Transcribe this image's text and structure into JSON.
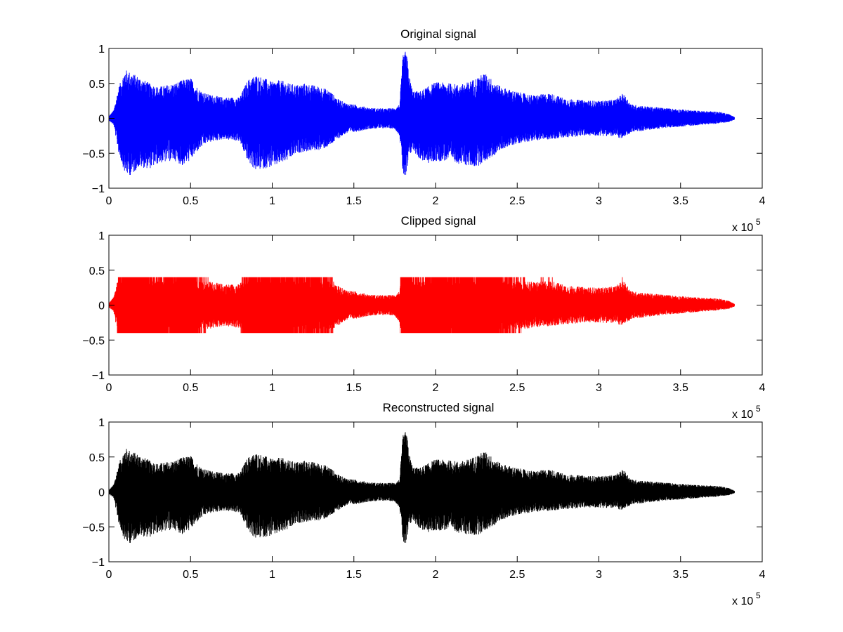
{
  "chart_data": [
    {
      "type": "line",
      "title": "Original signal",
      "color": "#0000ff",
      "xlim": [
        0,
        400000
      ],
      "ylim": [
        -1,
        1
      ],
      "x_ticks": [
        0,
        50000,
        100000,
        150000,
        200000,
        250000,
        300000,
        350000,
        400000
      ],
      "x_tick_labels": [
        "0",
        "0.5",
        "1",
        "1.5",
        "2",
        "2.5",
        "3",
        "3.5",
        "4"
      ],
      "y_ticks": [
        -1,
        -0.5,
        0,
        0.5,
        1
      ],
      "y_tick_labels": [
        "−1",
        "−0.5",
        "0",
        "0.5",
        "1"
      ],
      "x_multiplier": "x 10",
      "x_multiplier_exp": "5",
      "envelope": {
        "x": [
          0,
          3000,
          6000,
          10000,
          14000,
          18000,
          25000,
          30000,
          40000,
          45000,
          50000,
          55000,
          60000,
          70000,
          80000,
          85000,
          90000,
          95000,
          100000,
          105000,
          110000,
          115000,
          120000,
          130000,
          135000,
          140000,
          145000,
          150000,
          160000,
          170000,
          175000,
          178000,
          180000,
          182000,
          184000,
          186000,
          190000,
          195000,
          200000,
          210000,
          215000,
          220000,
          225000,
          230000,
          235000,
          240000,
          250000,
          260000,
          270000,
          280000,
          290000,
          300000,
          310000,
          315000,
          320000,
          330000,
          340000,
          350000,
          360000,
          370000,
          375000,
          380000,
          383000
        ],
        "upper": [
          0.03,
          0.12,
          0.45,
          0.7,
          0.65,
          0.6,
          0.5,
          0.45,
          0.5,
          0.55,
          0.58,
          0.42,
          0.35,
          0.3,
          0.3,
          0.55,
          0.62,
          0.58,
          0.52,
          0.55,
          0.5,
          0.48,
          0.5,
          0.45,
          0.4,
          0.28,
          0.22,
          0.2,
          0.15,
          0.14,
          0.15,
          0.2,
          0.9,
          0.98,
          0.6,
          0.4,
          0.38,
          0.45,
          0.52,
          0.5,
          0.48,
          0.52,
          0.58,
          0.65,
          0.55,
          0.45,
          0.38,
          0.33,
          0.36,
          0.28,
          0.26,
          0.25,
          0.27,
          0.36,
          0.2,
          0.17,
          0.15,
          0.13,
          0.11,
          0.1,
          0.09,
          0.06,
          0.02
        ],
        "lower": [
          -0.03,
          -0.1,
          -0.5,
          -0.8,
          -0.82,
          -0.7,
          -0.72,
          -0.65,
          -0.6,
          -0.68,
          -0.6,
          -0.45,
          -0.35,
          -0.3,
          -0.33,
          -0.62,
          -0.75,
          -0.72,
          -0.7,
          -0.65,
          -0.6,
          -0.5,
          -0.48,
          -0.45,
          -0.4,
          -0.3,
          -0.22,
          -0.2,
          -0.15,
          -0.14,
          -0.15,
          -0.25,
          -0.8,
          -0.9,
          -0.55,
          -0.45,
          -0.58,
          -0.65,
          -0.62,
          -0.6,
          -0.66,
          -0.68,
          -0.7,
          -0.62,
          -0.55,
          -0.45,
          -0.36,
          -0.32,
          -0.3,
          -0.28,
          -0.25,
          -0.25,
          -0.26,
          -0.3,
          -0.2,
          -0.17,
          -0.14,
          -0.12,
          -0.1,
          -0.08,
          -0.07,
          -0.05,
          -0.02
        ]
      }
    },
    {
      "type": "line",
      "title": "Clipped signal",
      "color": "#ff0000",
      "xlim": [
        0,
        400000
      ],
      "ylim": [
        -1,
        1
      ],
      "x_ticks": [
        0,
        50000,
        100000,
        150000,
        200000,
        250000,
        300000,
        350000,
        400000
      ],
      "x_tick_labels": [
        "0",
        "0.5",
        "1",
        "1.5",
        "2",
        "2.5",
        "3",
        "3.5",
        "4"
      ],
      "y_ticks": [
        -1,
        -0.5,
        0,
        0.5,
        1
      ],
      "y_tick_labels": [
        "−1",
        "−0.5",
        "0",
        "0.5",
        "1"
      ],
      "x_multiplier": "x 10",
      "x_multiplier_exp": "5",
      "clip_level": 0.4
    },
    {
      "type": "line",
      "title": "Reconstructed signal",
      "color": "#000000",
      "xlim": [
        0,
        400000
      ],
      "ylim": [
        -1,
        1
      ],
      "x_ticks": [
        0,
        50000,
        100000,
        150000,
        200000,
        250000,
        300000,
        350000,
        400000
      ],
      "x_tick_labels": [
        "0",
        "0.5",
        "1",
        "1.5",
        "2",
        "2.5",
        "3",
        "3.5",
        "4"
      ],
      "y_ticks": [
        -1,
        -0.5,
        0,
        0.5,
        1
      ],
      "y_tick_labels": [
        "−1",
        "−0.5",
        "0",
        "0.5",
        "1"
      ],
      "x_multiplier": "x 10",
      "x_multiplier_exp": "5",
      "scale": 0.9
    }
  ]
}
